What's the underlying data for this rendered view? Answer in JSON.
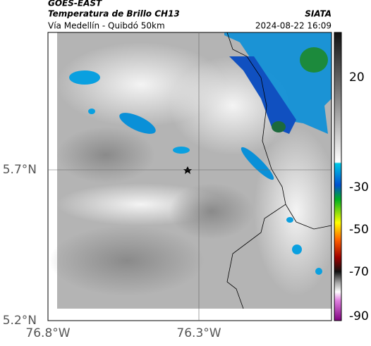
{
  "header": {
    "title": "GOES-EAST",
    "subtitle": "Temperatura de Brillo CH13",
    "route": "Vía Medellín - Quibdó 50km",
    "source": "SIATA",
    "timestamp": "2024-08-22 16:09"
  },
  "map": {
    "x_labels": [
      "76.8°W",
      "76.3°W"
    ],
    "y_labels": [
      "5.7°N",
      "5.2°N"
    ]
  },
  "colorbar": {
    "ticks": [
      20,
      -30,
      -50,
      -70,
      -90
    ]
  }
}
